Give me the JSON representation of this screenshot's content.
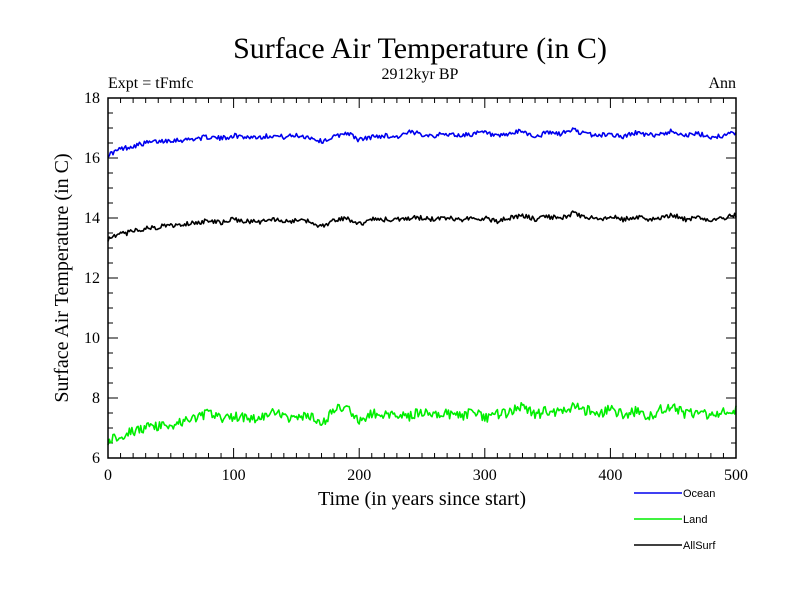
{
  "chart_data": {
    "type": "line",
    "title": "Surface Air Temperature (in C)",
    "subtitle": "2912kyr BP",
    "left_label": "Expt = tFmfc",
    "right_label": "Ann",
    "xlabel": "Time (in years since start)",
    "ylabel": "Surface Air Temperature (in C)",
    "xlim": [
      0,
      500
    ],
    "ylim": [
      6,
      18
    ],
    "xticks": [
      "0",
      "100",
      "200",
      "300",
      "400",
      "500"
    ],
    "yticks": [
      "6",
      "8",
      "10",
      "12",
      "14",
      "16",
      "18"
    ],
    "legend_position": "bottom-right",
    "series": [
      {
        "name": "Ocean",
        "color": "#0000ee",
        "x": [
          0,
          10,
          20,
          30,
          40,
          50,
          60,
          70,
          80,
          90,
          100,
          110,
          120,
          130,
          140,
          150,
          160,
          170,
          180,
          190,
          200,
          210,
          220,
          230,
          240,
          250,
          260,
          270,
          280,
          290,
          300,
          310,
          320,
          330,
          340,
          350,
          360,
          370,
          380,
          390,
          400,
          410,
          420,
          430,
          440,
          450,
          460,
          470,
          480,
          490,
          500
        ],
        "values": [
          16.1,
          16.3,
          16.4,
          16.5,
          16.55,
          16.6,
          16.6,
          16.65,
          16.7,
          16.65,
          16.75,
          16.7,
          16.7,
          16.75,
          16.7,
          16.75,
          16.7,
          16.55,
          16.7,
          16.85,
          16.6,
          16.7,
          16.75,
          16.7,
          16.85,
          16.8,
          16.75,
          16.8,
          16.75,
          16.8,
          16.85,
          16.7,
          16.8,
          16.9,
          16.7,
          16.85,
          16.8,
          16.95,
          16.8,
          16.75,
          16.8,
          16.7,
          16.85,
          16.75,
          16.8,
          16.9,
          16.75,
          16.8,
          16.7,
          16.75,
          16.85
        ]
      },
      {
        "name": "Land",
        "color": "#00ee00",
        "x": [
          0,
          10,
          20,
          30,
          40,
          50,
          60,
          70,
          80,
          90,
          100,
          110,
          120,
          130,
          140,
          150,
          160,
          170,
          180,
          190,
          200,
          210,
          220,
          230,
          240,
          250,
          260,
          270,
          280,
          290,
          300,
          310,
          320,
          330,
          340,
          350,
          360,
          370,
          380,
          390,
          400,
          410,
          420,
          430,
          440,
          450,
          460,
          470,
          480,
          490,
          500
        ],
        "values": [
          6.6,
          6.75,
          6.9,
          7.0,
          7.05,
          7.1,
          7.2,
          7.35,
          7.5,
          7.3,
          7.4,
          7.35,
          7.3,
          7.5,
          7.4,
          7.3,
          7.4,
          7.1,
          7.6,
          7.7,
          7.2,
          7.5,
          7.4,
          7.5,
          7.4,
          7.55,
          7.45,
          7.5,
          7.4,
          7.5,
          7.35,
          7.45,
          7.5,
          7.75,
          7.4,
          7.6,
          7.5,
          7.7,
          7.6,
          7.5,
          7.6,
          7.45,
          7.55,
          7.4,
          7.6,
          7.7,
          7.45,
          7.5,
          7.4,
          7.5,
          7.65
        ]
      },
      {
        "name": "AllSurf",
        "color": "#000000",
        "x": [
          0,
          10,
          20,
          30,
          40,
          50,
          60,
          70,
          80,
          90,
          100,
          110,
          120,
          130,
          140,
          150,
          160,
          170,
          180,
          190,
          200,
          210,
          220,
          230,
          240,
          250,
          260,
          270,
          280,
          290,
          300,
          310,
          320,
          330,
          340,
          350,
          360,
          370,
          380,
          390,
          400,
          410,
          420,
          430,
          440,
          450,
          460,
          470,
          480,
          490,
          500
        ],
        "values": [
          13.3,
          13.45,
          13.55,
          13.65,
          13.7,
          13.75,
          13.8,
          13.85,
          13.9,
          13.85,
          13.95,
          13.9,
          13.85,
          13.95,
          13.9,
          13.9,
          13.9,
          13.7,
          13.95,
          14.0,
          13.8,
          13.95,
          13.95,
          13.95,
          14.0,
          14.0,
          13.95,
          14.0,
          13.95,
          14.0,
          14.0,
          13.9,
          14.0,
          14.1,
          13.95,
          14.05,
          14.0,
          14.15,
          14.05,
          13.95,
          14.05,
          13.95,
          14.05,
          13.95,
          14.0,
          14.1,
          13.95,
          14.0,
          13.95,
          14.0,
          14.1
        ]
      }
    ]
  }
}
